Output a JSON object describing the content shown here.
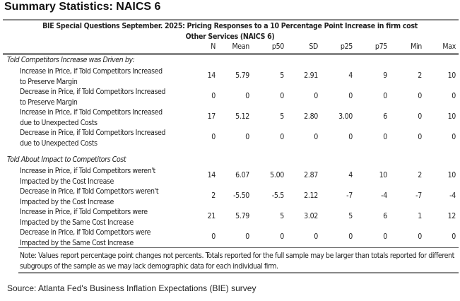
{
  "title": "Summary Statistics: NAICS 6",
  "table": {
    "header_line1": "BIE Special Questions September. 2025: Pricing Responses to a 10 Percentage Point Increase in firm cost",
    "header_line2": "Other Services (NAICS 6)",
    "columns": [
      "N",
      "Mean",
      "p50",
      "SD",
      "p25",
      "p75",
      "Min",
      "Max"
    ],
    "sections": [
      {
        "label": "Told Competitors Increase was Driven by:",
        "rows": [
          {
            "label_1": "Increase in Price, if Told Competitors Increased",
            "label_2": "to Preserve Margin",
            "values": [
              "14",
              "5.79",
              "5",
              "2.91",
              "4",
              "9",
              "2",
              "10"
            ]
          },
          {
            "label_1": "Decrease in Price, if Told Competitors Increased",
            "label_2": "to Preserve Margin",
            "values": [
              "0",
              "0",
              "0",
              "0",
              "0",
              "0",
              "0",
              "0"
            ]
          },
          {
            "label_1": "Increase in Price, if Told Competitors Increased",
            "label_2": "due to Unexpected Costs",
            "values": [
              "17",
              "5.12",
              "5",
              "2.80",
              "3.00",
              "6",
              "0",
              "10"
            ]
          },
          {
            "label_1": "Decrease in Price, if Told Competitors Increased",
            "label_2": "due to Unexpected Costs",
            "values": [
              "0",
              "0",
              "0",
              "0",
              "0",
              "0",
              "0",
              "0"
            ]
          }
        ]
      },
      {
        "label": "Told About Impact to Competitors Cost",
        "rows": [
          {
            "label_1": "Increase in Price, if Told Competitors weren't",
            "label_2": "Impacted by the Cost Increase",
            "values": [
              "14",
              "6.07",
              "5.00",
              "2.87",
              "4",
              "10",
              "2",
              "10"
            ]
          },
          {
            "label_1": "Decrease in Price, if Told Competitors weren't",
            "label_2": "Impacted by the Cost Increase",
            "values": [
              "2",
              "-5.50",
              "-5.5",
              "2.12",
              "-7",
              "-4",
              "-7",
              "-4"
            ]
          },
          {
            "label_1": "Increase in Price, if Told Competitors were",
            "label_2": "Impacted by the Same Cost Increase",
            "values": [
              "21",
              "5.79",
              "5",
              "3.02",
              "5",
              "6",
              "1",
              "12"
            ]
          },
          {
            "label_1": "Decrease in Price, if Told Competitors were",
            "label_2": "Impacted by the Same Cost Increase",
            "values": [
              "0",
              "0",
              "0",
              "0",
              "0",
              "0",
              "0",
              "0"
            ]
          }
        ]
      }
    ],
    "note": "Note: Values report percentage point changes not percents. Totals reported for the full sample may be larger than totals reported for different subgroups of the sample as we may lack demographic data for each individual firm."
  },
  "source": "Source: Atlanta Fed's Business Inflation Expectations (BIE) survey"
}
